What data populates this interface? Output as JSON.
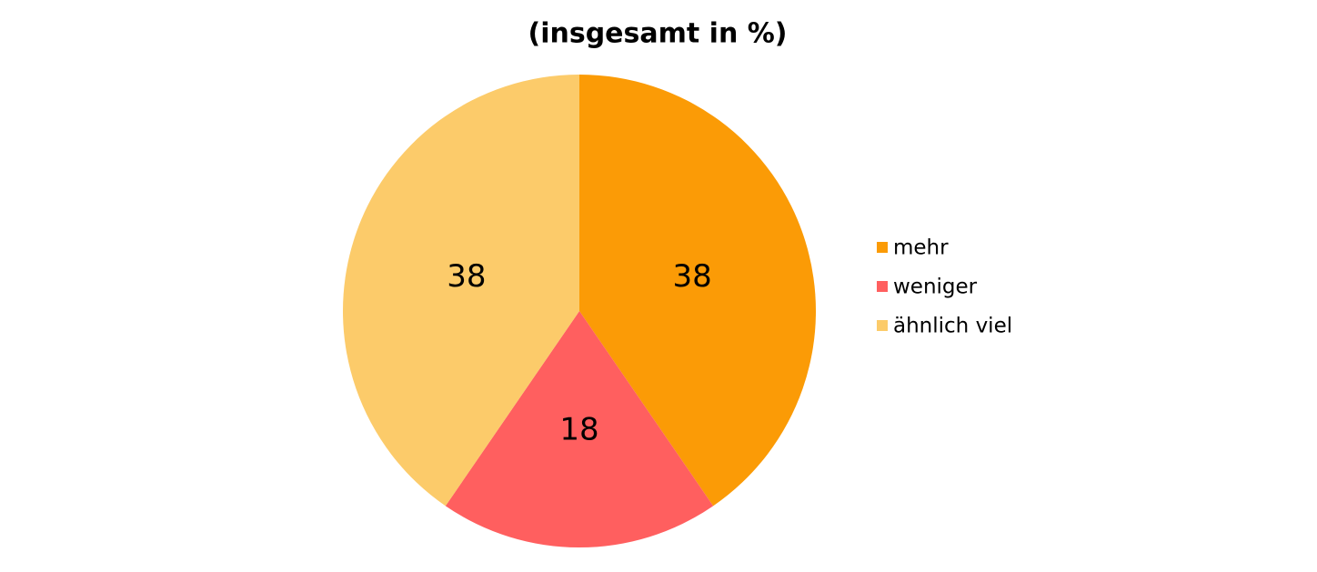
{
  "chart_data": {
    "type": "pie",
    "title": "(insgesamt in %)",
    "categories": [
      "mehr",
      "weniger",
      "ähnlich viel"
    ],
    "values": [
      38,
      18,
      38
    ],
    "colors": [
      "#fb9b06",
      "#ff5f5f",
      "#fccb6a"
    ],
    "legend": "right"
  }
}
